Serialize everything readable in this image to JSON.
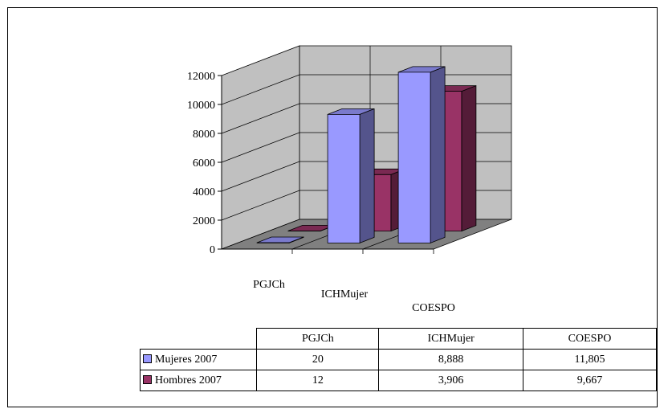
{
  "chart_data": {
    "type": "bar",
    "three_d": true,
    "categories": [
      "PGJCh",
      "ICHMujer",
      "COESPO"
    ],
    "series": [
      {
        "name": "Mujeres 2007",
        "values": [
          20,
          8888,
          11805
        ],
        "display": [
          "20",
          "8,888",
          "11,805"
        ],
        "color": "#9999ff"
      },
      {
        "name": "Hombres 2007",
        "values": [
          12,
          3906,
          9667
        ],
        "display": [
          "12",
          "3,906",
          "9,667"
        ],
        "color": "#993366"
      }
    ],
    "yticks": [
      "0",
      "2000",
      "4000",
      "6000",
      "8000",
      "10000",
      "12000"
    ],
    "ylim": [
      0,
      12000
    ],
    "grid": true,
    "legend": "data-table"
  }
}
